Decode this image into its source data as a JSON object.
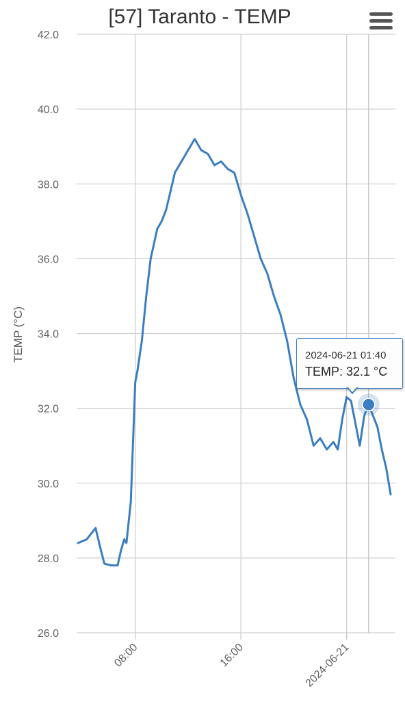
{
  "chart_data": {
    "type": "line",
    "title": "[57] Taranto - TEMP",
    "ylabel": "TEMP (°C)",
    "xlabel": "",
    "ylim": [
      26.0,
      42.0
    ],
    "y_ticks": [
      "26.0",
      "28.0",
      "30.0",
      "32.0",
      "34.0",
      "36.0",
      "38.0",
      "40.0",
      "42.0"
    ],
    "x_range": [
      "2024-06-20 03:40",
      "2024-06-21 03:20"
    ],
    "x_ticks": [
      {
        "time": "2024-06-20 08:00",
        "label": "08:00"
      },
      {
        "time": "2024-06-20 16:00",
        "label": "16:00"
      },
      {
        "time": "2024-06-21 00:00",
        "label": "2024-06-21"
      }
    ],
    "grid": true,
    "legend": "none",
    "line_color": "#3a7dc0",
    "series": [
      {
        "name": "TEMP",
        "unit": "°C",
        "points": [
          [
            "2024-06-20 03:40",
            28.4
          ],
          [
            "2024-06-20 04:20",
            28.5
          ],
          [
            "2024-06-20 05:00",
            28.8
          ],
          [
            "2024-06-20 05:20",
            28.3
          ],
          [
            "2024-06-20 05:40",
            27.85
          ],
          [
            "2024-06-20 06:10",
            27.8
          ],
          [
            "2024-06-20 06:40",
            27.8
          ],
          [
            "2024-06-20 06:55",
            28.2
          ],
          [
            "2024-06-20 07:10",
            28.5
          ],
          [
            "2024-06-20 07:20",
            28.4
          ],
          [
            "2024-06-20 07:40",
            29.5
          ],
          [
            "2024-06-20 08:00",
            32.7
          ],
          [
            "2024-06-20 08:10",
            33.0
          ],
          [
            "2024-06-20 08:30",
            33.8
          ],
          [
            "2024-06-20 08:50",
            35.0
          ],
          [
            "2024-06-20 09:10",
            36.0
          ],
          [
            "2024-06-20 09:40",
            36.8
          ],
          [
            "2024-06-20 10:00",
            37.0
          ],
          [
            "2024-06-20 10:20",
            37.3
          ],
          [
            "2024-06-20 10:40",
            37.8
          ],
          [
            "2024-06-20 11:00",
            38.3
          ],
          [
            "2024-06-20 11:30",
            38.6
          ],
          [
            "2024-06-20 12:00",
            38.9
          ],
          [
            "2024-06-20 12:30",
            39.2
          ],
          [
            "2024-06-20 13:00",
            38.9
          ],
          [
            "2024-06-20 13:30",
            38.8
          ],
          [
            "2024-06-20 14:00",
            38.5
          ],
          [
            "2024-06-20 14:30",
            38.6
          ],
          [
            "2024-06-20 15:00",
            38.4
          ],
          [
            "2024-06-20 15:30",
            38.3
          ],
          [
            "2024-06-20 16:00",
            37.7
          ],
          [
            "2024-06-20 16:30",
            37.2
          ],
          [
            "2024-06-20 17:00",
            36.6
          ],
          [
            "2024-06-20 17:30",
            36.0
          ],
          [
            "2024-06-20 18:00",
            35.6
          ],
          [
            "2024-06-20 18:30",
            35.0
          ],
          [
            "2024-06-20 19:00",
            34.5
          ],
          [
            "2024-06-20 19:30",
            33.8
          ],
          [
            "2024-06-20 20:00",
            32.8
          ],
          [
            "2024-06-20 20:30",
            32.1
          ],
          [
            "2024-06-20 21:00",
            31.7
          ],
          [
            "2024-06-20 21:30",
            31.0
          ],
          [
            "2024-06-20 22:00",
            31.2
          ],
          [
            "2024-06-20 22:30",
            30.9
          ],
          [
            "2024-06-20 23:00",
            31.1
          ],
          [
            "2024-06-20 23:20",
            30.9
          ],
          [
            "2024-06-20 23:40",
            31.7
          ],
          [
            "2024-06-21 00:00",
            32.3
          ],
          [
            "2024-06-21 00:20",
            32.2
          ],
          [
            "2024-06-21 00:40",
            31.6
          ],
          [
            "2024-06-21 01:00",
            31.0
          ],
          [
            "2024-06-21 01:20",
            31.8
          ],
          [
            "2024-06-21 01:40",
            32.1
          ],
          [
            "2024-06-21 02:00",
            31.8
          ],
          [
            "2024-06-21 02:20",
            31.5
          ],
          [
            "2024-06-21 02:40",
            30.9
          ],
          [
            "2024-06-21 03:00",
            30.4
          ],
          [
            "2024-06-21 03:20",
            29.7
          ]
        ]
      }
    ],
    "highlight": {
      "time": "2024-06-21 01:40",
      "value": 32.1
    }
  },
  "tooltip": {
    "date": "2024-06-21 01:40",
    "value_text": "TEMP: 32.1 °C"
  },
  "menu": {
    "icon": "hamburger-menu-icon"
  }
}
